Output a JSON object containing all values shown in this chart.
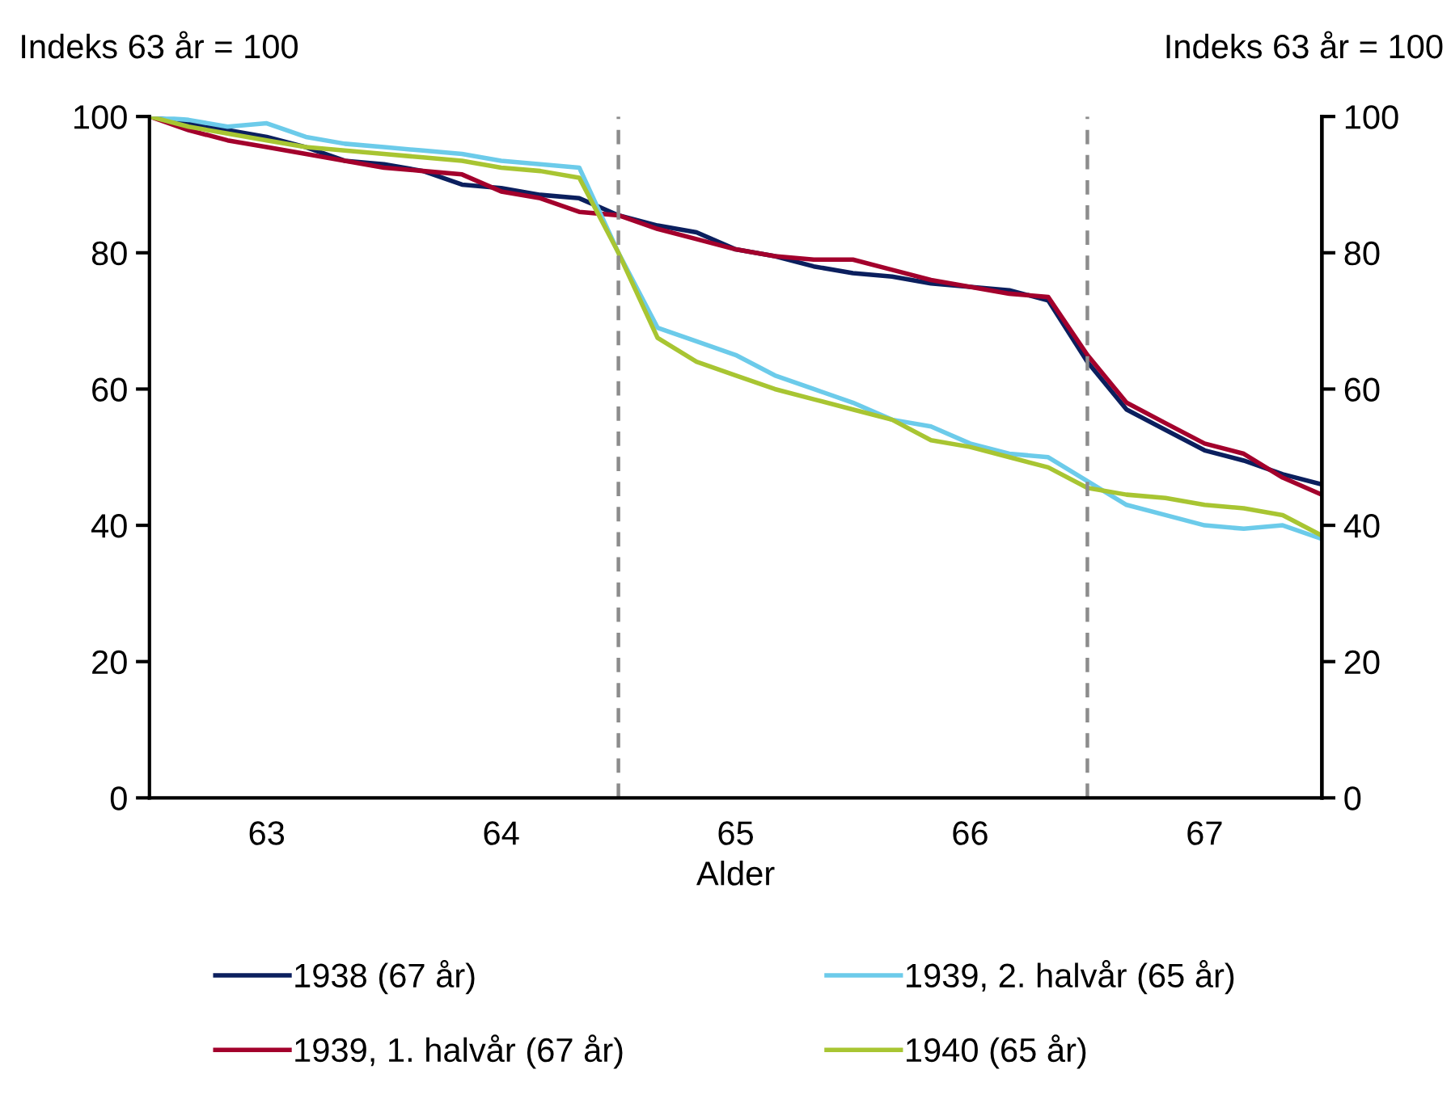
{
  "chart_data": {
    "type": "line",
    "ylabel": "Indeks 63 år = 100",
    "y2label": "Indeks 63 år = 100",
    "xlabel": "Alder",
    "x": [
      62.5,
      62.667,
      62.833,
      63.0,
      63.167,
      63.333,
      63.5,
      63.667,
      63.833,
      64.0,
      64.167,
      64.333,
      64.5,
      64.667,
      64.833,
      65.0,
      65.167,
      65.333,
      65.5,
      65.667,
      65.833,
      66.0,
      66.167,
      66.333,
      66.5,
      66.667,
      66.833,
      67.0,
      67.167,
      67.333,
      67.5
    ],
    "series": [
      {
        "name": "1938 (67 år)",
        "color": "#0b1f5e",
        "values": [
          100,
          99,
          98,
          97,
          95.5,
          93.5,
          93,
          92,
          90,
          89.5,
          88.5,
          88,
          85.5,
          84,
          83,
          80.5,
          79.5,
          78,
          77,
          76.5,
          75.5,
          75,
          74.5,
          73,
          64,
          57,
          54,
          51,
          49.5,
          47.5,
          46
        ]
      },
      {
        "name": "1939, 1. halvår (67 år)",
        "color": "#a3002c",
        "values": [
          100,
          98,
          96.5,
          95.5,
          94.5,
          93.5,
          92.5,
          92,
          91.5,
          89,
          88,
          86,
          85.5,
          83.5,
          82,
          80.5,
          79.5,
          79,
          79,
          77.5,
          76,
          75,
          74,
          73.5,
          65,
          58,
          55,
          52,
          50.5,
          47,
          44.5
        ]
      },
      {
        "name": "1939, 2. halvår (65 år)",
        "color": "#6ccbea",
        "values": [
          100,
          99.5,
          98.5,
          99,
          97,
          96,
          95.5,
          95,
          94.5,
          93.5,
          93,
          92.5,
          80,
          69,
          67,
          65,
          62,
          60,
          58,
          55.5,
          54.5,
          52,
          50.5,
          50,
          46.5,
          43,
          41.5,
          40,
          39.5,
          40,
          38
        ]
      },
      {
        "name": "1940 (65 år)",
        "color": "#a8c532",
        "values": [
          100,
          98.5,
          97.5,
          96.5,
          95.5,
          95,
          94.5,
          94,
          93.5,
          92.5,
          92,
          91,
          80,
          67.5,
          64,
          62,
          60,
          58.5,
          57,
          55.5,
          52.5,
          51.5,
          50,
          48.5,
          45.5,
          44.5,
          44,
          43,
          42.5,
          41.5,
          38.5
        ]
      }
    ],
    "xlim": [
      62.5,
      67.5
    ],
    "xticks": [
      63,
      64,
      65,
      66,
      67
    ],
    "ylim": [
      0,
      100
    ],
    "yticks": [
      0,
      20,
      40,
      60,
      80,
      100
    ],
    "y2lim": [
      0,
      100
    ],
    "y2ticks": [
      0,
      20,
      40,
      60,
      80,
      100
    ],
    "ref_lines": [
      {
        "axis": "x",
        "value": 64.5,
        "color": "#8c8c8c",
        "line_style": "dashed"
      },
      {
        "axis": "x",
        "value": 66.5,
        "color": "#8c8c8c",
        "line_style": "dashed"
      }
    ],
    "grid": false,
    "legend": "bottom",
    "marker": "none",
    "line_style": "solid"
  }
}
